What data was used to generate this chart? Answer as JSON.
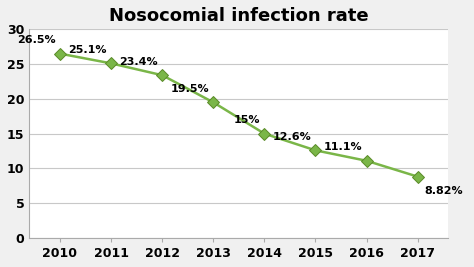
{
  "title": "Nosocomial infection rate",
  "years": [
    2010,
    2011,
    2012,
    2013,
    2014,
    2015,
    2016,
    2017
  ],
  "values": [
    26.5,
    25.1,
    23.4,
    19.5,
    15.0,
    12.6,
    11.1,
    8.82
  ],
  "labels": [
    "26.5%",
    "25.1%",
    "23.4%",
    "19.5%",
    "15%",
    "12.6%",
    "11.1%",
    "8.82%"
  ],
  "label_offsets_x": [
    -3,
    -3,
    -3,
    -3,
    -3,
    -3,
    -3,
    5
  ],
  "label_offsets_y": [
    6,
    6,
    6,
    6,
    6,
    6,
    6,
    -14
  ],
  "label_ha": [
    "right",
    "right",
    "right",
    "right",
    "right",
    "right",
    "right",
    "left"
  ],
  "line_color": "#7ab648",
  "marker_color": "#7ab648",
  "marker_edge_color": "#5a8a28",
  "background_color": "#f0f0f0",
  "plot_bg_color": "#ffffff",
  "grid_color": "#c8c8c8",
  "ylim": [
    0,
    30
  ],
  "yticks": [
    0,
    5,
    10,
    15,
    20,
    25,
    30
  ],
  "title_fontsize": 13,
  "label_fontsize": 8,
  "tick_fontsize": 9
}
